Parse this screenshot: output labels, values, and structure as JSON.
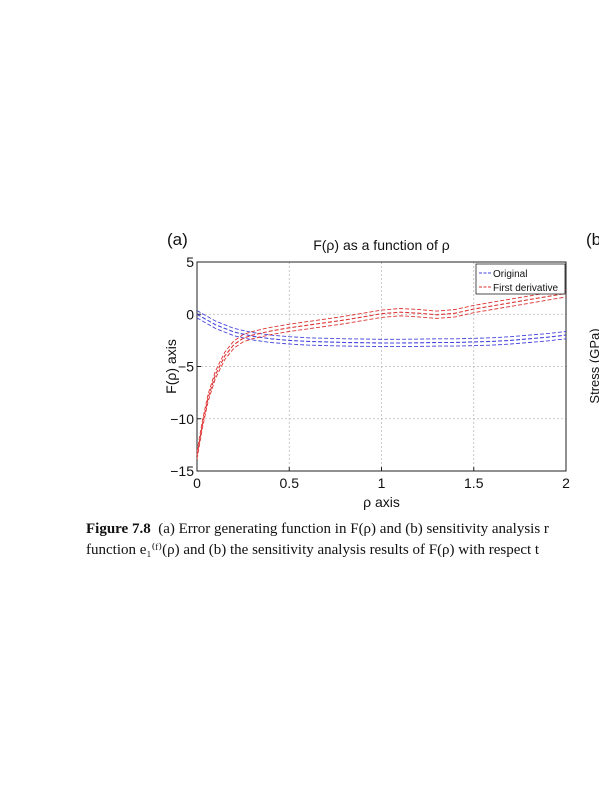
{
  "panel_a_label": "(a)",
  "panel_b_label": "(b",
  "right_ylabel": "Stress (GPa)",
  "caption": {
    "label": "Figure 7.8",
    "line1": "(a) Error generating function in F(ρ) and (b) sensitivity analysis r",
    "line2": "function e₁⁽ᶠ⁾(ρ) and (b) the sensitivity analysis results of F(ρ) with respect t"
  },
  "colors": {
    "original": "#4444dd",
    "first_derivative": "#dd3333",
    "grid": "#bbbbbb"
  },
  "chart_data": {
    "type": "line",
    "title": "F(ρ) as a function of ρ",
    "xlabel": "ρ axis",
    "ylabel": "F(ρ) axis",
    "xlim": [
      0,
      2
    ],
    "ylim": [
      -15,
      5
    ],
    "xticks": [
      0,
      0.5,
      1,
      1.5,
      2
    ],
    "xtick_labels": [
      "0",
      "0.5",
      "1",
      "1.5",
      "2"
    ],
    "yticks": [
      5,
      0,
      -5,
      -10,
      -15
    ],
    "ytick_labels": [
      "5",
      "0",
      "−5",
      "−10",
      "−15"
    ],
    "grid": true,
    "legend_position": "top-right",
    "series": [
      {
        "name": "Original",
        "style": "dashed",
        "color": "#4444dd",
        "x": [
          0,
          0.1,
          0.2,
          0.3,
          0.4,
          0.5,
          0.6,
          0.7,
          0.8,
          0.9,
          1.0,
          1.1,
          1.2,
          1.3,
          1.4,
          1.5,
          1.6,
          1.7,
          1.8,
          1.9,
          2.0
        ],
        "y": [
          0,
          -1.0,
          -1.7,
          -2.1,
          -2.35,
          -2.5,
          -2.6,
          -2.65,
          -2.7,
          -2.72,
          -2.75,
          -2.75,
          -2.73,
          -2.7,
          -2.7,
          -2.65,
          -2.6,
          -2.5,
          -2.35,
          -2.2,
          -2.0
        ]
      },
      {
        "name": "First derivative",
        "style": "dashed",
        "color": "#dd3333",
        "x": [
          0,
          0.03,
          0.06,
          0.1,
          0.15,
          0.2,
          0.25,
          0.3,
          0.4,
          0.5,
          0.6,
          0.7,
          0.8,
          0.9,
          1.0,
          1.1,
          1.2,
          1.3,
          1.4,
          1.5,
          1.6,
          1.7,
          1.8,
          1.9,
          2.0
        ],
        "y": [
          -13.5,
          -10.5,
          -8.0,
          -5.8,
          -4.0,
          -2.9,
          -2.3,
          -2.0,
          -1.6,
          -1.3,
          -1.05,
          -0.8,
          -0.55,
          -0.25,
          0.05,
          0.2,
          0.1,
          -0.05,
          0.1,
          0.5,
          0.8,
          1.1,
          1.4,
          1.7,
          2.0
        ]
      }
    ]
  }
}
